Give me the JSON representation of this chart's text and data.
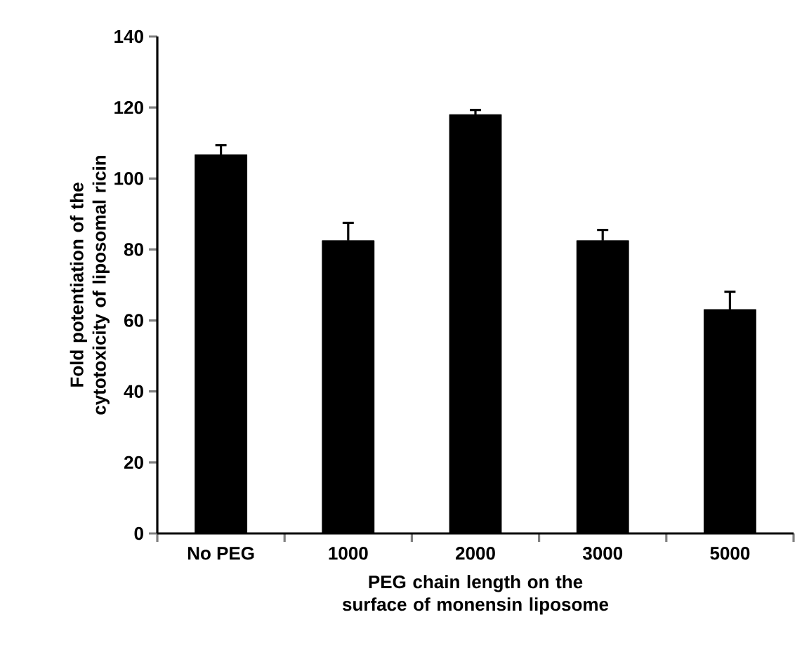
{
  "chart_data": {
    "type": "bar",
    "xlabel": "PEG chain length on the surface of monensin liposome",
    "ylabel": "Fold potentiation of the cytotoxicity of liposomal ricin",
    "categories": [
      "No PEG",
      "1000",
      "2000",
      "3000",
      "5000"
    ],
    "values": [
      106.7,
      82.5,
      118,
      82.5,
      63.1
    ],
    "errors": [
      2.7,
      5,
      1.3,
      3,
      5
    ],
    "color": "#000000",
    "ylim": [
      0,
      140
    ],
    "yticks": [
      0,
      20,
      40,
      60,
      80,
      100,
      120,
      140
    ]
  }
}
